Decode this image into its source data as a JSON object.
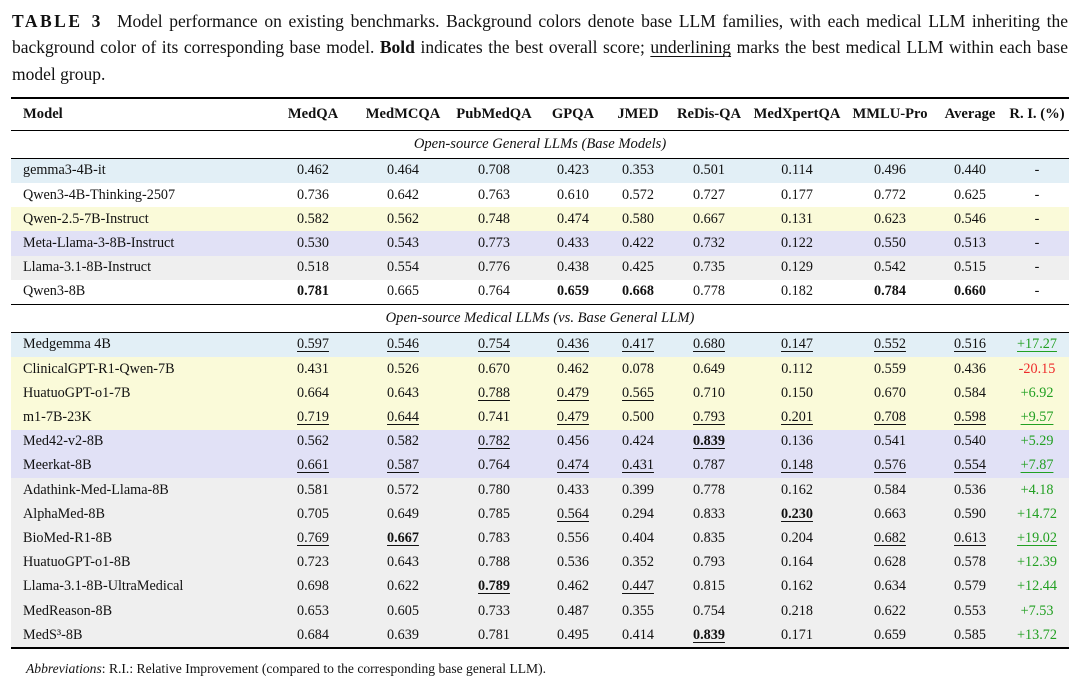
{
  "caption": {
    "tag": "TABLE 3",
    "part1": "Model performance on existing benchmarks. Background colors denote base LLM families, with each medical LLM inheriting the background color of its corresponding base model. ",
    "bold_word": "Bold",
    "part2": " indicates the best overall score; ",
    "underlined_word": "underlining",
    "part3": " marks the best medical LLM within each base model group."
  },
  "colors": {
    "positive": "#22A022",
    "negative": "#EE2A2A",
    "families": {
      "gemma": "#E2EFF6",
      "qwen25": "#FAFAD9",
      "llama3": "#E1E1F6",
      "llama31": "#EFEFEF",
      "none": "#FFFFFF"
    }
  },
  "chart_data": {
    "type": "table",
    "title": "Model performance on existing benchmarks"
  },
  "table": {
    "columns": [
      "Model",
      "MedQA",
      "MedMCQA",
      "PubMedQA",
      "GPQA",
      "JMED",
      "ReDis-QA",
      "MedXpertQA",
      "MMLU-Pro",
      "Average",
      "R. I. (%)"
    ],
    "sections": [
      {
        "title": "Open-source General LLMs (Base Models)",
        "rows": [
          {
            "model": "gemma3-4B-it",
            "bg": "gemma",
            "cells": [
              "0.462",
              "0.464",
              "0.708",
              "0.423",
              "0.353",
              "0.501",
              "0.114",
              "0.496",
              "0.440",
              "-"
            ]
          },
          {
            "model": "Qwen3-4B-Thinking-2507",
            "bg": "none",
            "cells": [
              "0.736",
              "0.642",
              "0.763",
              "0.610",
              "0.572",
              "0.727",
              "0.177",
              "0.772",
              "0.625",
              "-"
            ]
          },
          {
            "model": "Qwen-2.5-7B-Instruct",
            "bg": "qwen25",
            "cells": [
              "0.582",
              "0.562",
              "0.748",
              "0.474",
              "0.580",
              "0.667",
              "0.131",
              "0.623",
              "0.546",
              "-"
            ]
          },
          {
            "model": "Meta-Llama-3-8B-Instruct",
            "bg": "llama3",
            "cells": [
              "0.530",
              "0.543",
              "0.773",
              "0.433",
              "0.422",
              "0.732",
              "0.122",
              "0.550",
              "0.513",
              "-"
            ]
          },
          {
            "model": "Llama-3.1-8B-Instruct",
            "bg": "llama31",
            "cells": [
              "0.518",
              "0.554",
              "0.776",
              "0.438",
              "0.425",
              "0.735",
              "0.129",
              "0.542",
              "0.515",
              "-"
            ]
          },
          {
            "model": "Qwen3-8B",
            "bg": "none",
            "cells": [
              {
                "v": "0.781",
                "b": true
              },
              "0.665",
              "0.764",
              {
                "v": "0.659",
                "b": true
              },
              {
                "v": "0.668",
                "b": true
              },
              "0.778",
              "0.182",
              {
                "v": "0.784",
                "b": true
              },
              {
                "v": "0.660",
                "b": true
              },
              "-"
            ]
          }
        ]
      },
      {
        "title": "Open-source Medical LLMs (vs. Base General LLM)",
        "rows": [
          {
            "model": "Medgemma 4B",
            "bg": "gemma",
            "cells": [
              {
                "v": "0.597",
                "u": true
              },
              {
                "v": "0.546",
                "u": true
              },
              {
                "v": "0.754",
                "u": true
              },
              {
                "v": "0.436",
                "u": true
              },
              {
                "v": "0.417",
                "u": true
              },
              {
                "v": "0.680",
                "u": true
              },
              {
                "v": "0.147",
                "u": true
              },
              {
                "v": "0.552",
                "u": true
              },
              {
                "v": "0.516",
                "u": true
              },
              {
                "v": "+17.27",
                "u": true,
                "c": "pos"
              }
            ]
          },
          {
            "model": "ClinicalGPT-R1-Qwen-7B",
            "bg": "qwen25",
            "cells": [
              "0.431",
              "0.526",
              "0.670",
              "0.462",
              "0.078",
              "0.649",
              "0.112",
              "0.559",
              "0.436",
              {
                "v": "-20.15",
                "c": "neg"
              }
            ]
          },
          {
            "model": "HuatuoGPT-o1-7B",
            "bg": "qwen25",
            "cells": [
              "0.664",
              "0.643",
              {
                "v": "0.788",
                "u": true
              },
              {
                "v": "0.479",
                "u": true
              },
              {
                "v": "0.565",
                "u": true
              },
              "0.710",
              "0.150",
              "0.670",
              "0.584",
              {
                "v": "+6.92",
                "c": "pos"
              }
            ]
          },
          {
            "model": "m1-7B-23K",
            "bg": "qwen25",
            "cells": [
              {
                "v": "0.719",
                "u": true
              },
              {
                "v": "0.644",
                "u": true
              },
              "0.741",
              {
                "v": "0.479",
                "u": true
              },
              "0.500",
              {
                "v": "0.793",
                "u": true
              },
              {
                "v": "0.201",
                "u": true
              },
              {
                "v": "0.708",
                "u": true
              },
              {
                "v": "0.598",
                "u": true
              },
              {
                "v": "+9.57",
                "u": true,
                "c": "pos"
              }
            ]
          },
          {
            "model": "Med42-v2-8B",
            "bg": "llama3",
            "cells": [
              "0.562",
              "0.582",
              {
                "v": "0.782",
                "u": true
              },
              "0.456",
              "0.424",
              {
                "v": "0.839",
                "b": true,
                "u": true
              },
              "0.136",
              "0.541",
              "0.540",
              {
                "v": "+5.29",
                "c": "pos"
              }
            ]
          },
          {
            "model": "Meerkat-8B",
            "bg": "llama3",
            "cells": [
              {
                "v": "0.661",
                "u": true
              },
              {
                "v": "0.587",
                "u": true
              },
              "0.764",
              {
                "v": "0.474",
                "u": true
              },
              {
                "v": "0.431",
                "u": true
              },
              "0.787",
              {
                "v": "0.148",
                "u": true
              },
              {
                "v": "0.576",
                "u": true
              },
              {
                "v": "0.554",
                "u": true
              },
              {
                "v": "+7.87",
                "u": true,
                "c": "pos"
              }
            ]
          },
          {
            "model": "Adathink-Med-Llama-8B",
            "bg": "llama31",
            "cells": [
              "0.581",
              "0.572",
              "0.780",
              "0.433",
              "0.399",
              "0.778",
              "0.162",
              "0.584",
              "0.536",
              {
                "v": "+4.18",
                "c": "pos"
              }
            ]
          },
          {
            "model": "AlphaMed-8B",
            "bg": "llama31",
            "cells": [
              "0.705",
              "0.649",
              "0.785",
              {
                "v": "0.564",
                "u": true
              },
              "0.294",
              "0.833",
              {
                "v": "0.230",
                "b": true,
                "u": true
              },
              "0.663",
              "0.590",
              {
                "v": "+14.72",
                "c": "pos"
              }
            ]
          },
          {
            "model": "BioMed-R1-8B",
            "bg": "llama31",
            "cells": [
              {
                "v": "0.769",
                "u": true
              },
              {
                "v": "0.667",
                "b": true,
                "u": true
              },
              "0.783",
              "0.556",
              "0.404",
              "0.835",
              "0.204",
              {
                "v": "0.682",
                "u": true
              },
              {
                "v": "0.613",
                "u": true
              },
              {
                "v": "+19.02",
                "u": true,
                "c": "pos"
              }
            ]
          },
          {
            "model": "HuatuoGPT-o1-8B",
            "bg": "llama31",
            "cells": [
              "0.723",
              "0.643",
              "0.788",
              "0.536",
              "0.352",
              "0.793",
              "0.164",
              "0.628",
              "0.578",
              {
                "v": "+12.39",
                "c": "pos"
              }
            ]
          },
          {
            "model": "Llama-3.1-8B-UltraMedical",
            "bg": "llama31",
            "cells": [
              "0.698",
              "0.622",
              {
                "v": "0.789",
                "b": true,
                "u": true
              },
              "0.462",
              {
                "v": "0.447",
                "u": true
              },
              "0.815",
              "0.162",
              "0.634",
              "0.579",
              {
                "v": "+12.44",
                "c": "pos"
              }
            ]
          },
          {
            "model": "MedReason-8B",
            "bg": "llama31",
            "cells": [
              "0.653",
              "0.605",
              "0.733",
              "0.487",
              "0.355",
              "0.754",
              "0.218",
              "0.622",
              "0.553",
              {
                "v": "+7.53",
                "c": "pos"
              }
            ]
          },
          {
            "model": "MedS³-8B",
            "bg": "llama31",
            "cells": [
              "0.684",
              "0.639",
              "0.781",
              "0.495",
              "0.414",
              {
                "v": "0.839",
                "b": true,
                "u": true
              },
              "0.171",
              "0.659",
              "0.585",
              {
                "v": "+13.72",
                "c": "pos"
              }
            ]
          }
        ]
      }
    ]
  },
  "footnote": {
    "label": "Abbreviations",
    "text": ": R.I.: Relative Improvement (compared to the corresponding base general LLM)."
  }
}
